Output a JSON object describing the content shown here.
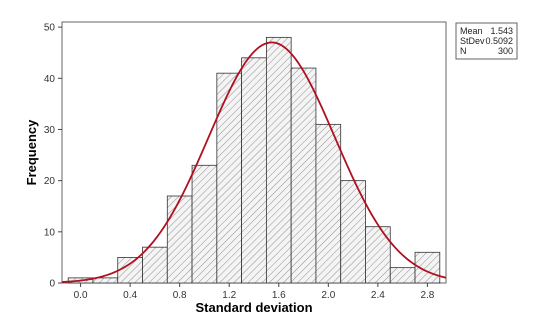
{
  "colors": {
    "bar_fill": "#f4f4f4",
    "bar_stroke": "#333333",
    "hatch": "#777777",
    "curve": "#b01020",
    "background": "#ffffff"
  },
  "chart_data": {
    "type": "bar",
    "subtype": "histogram-with-normal-fit",
    "xlabel": "Standard deviation",
    "ylabel": "Frequency",
    "xlim": [
      -0.15,
      2.95
    ],
    "ylim": [
      0,
      51
    ],
    "grid": false,
    "bin_width": 0.2,
    "bins": [
      {
        "center": 0.0,
        "count": 1
      },
      {
        "center": 0.2,
        "count": 1
      },
      {
        "center": 0.4,
        "count": 5
      },
      {
        "center": 0.6,
        "count": 7
      },
      {
        "center": 0.8,
        "count": 17
      },
      {
        "center": 1.0,
        "count": 23
      },
      {
        "center": 1.2,
        "count": 41
      },
      {
        "center": 1.4,
        "count": 44
      },
      {
        "center": 1.6,
        "count": 48
      },
      {
        "center": 1.8,
        "count": 42
      },
      {
        "center": 2.0,
        "count": 31
      },
      {
        "center": 2.2,
        "count": 20
      },
      {
        "center": 2.4,
        "count": 11
      },
      {
        "center": 2.6,
        "count": 3
      },
      {
        "center": 2.8,
        "count": 6
      }
    ],
    "x_ticks": [
      {
        "value": 0.0,
        "label": "0.0"
      },
      {
        "value": 0.4,
        "label": "0.4"
      },
      {
        "value": 0.8,
        "label": "0.8"
      },
      {
        "value": 1.2,
        "label": "1.2"
      },
      {
        "value": 1.6,
        "label": "1.6"
      },
      {
        "value": 2.0,
        "label": "2.0"
      },
      {
        "value": 2.4,
        "label": "2.4"
      },
      {
        "value": 2.8,
        "label": "2.8"
      }
    ],
    "y_ticks": [
      {
        "value": 0,
        "label": "0"
      },
      {
        "value": 10,
        "label": "10"
      },
      {
        "value": 20,
        "label": "20"
      },
      {
        "value": 30,
        "label": "30"
      },
      {
        "value": 40,
        "label": "40"
      },
      {
        "value": 50,
        "label": "50"
      }
    ],
    "fit": {
      "type": "normal",
      "mean": 1.543,
      "stdev": 0.5092,
      "n": 300
    },
    "legend_position": "top-right",
    "legend": [
      {
        "label": "Mean",
        "value": "1.543"
      },
      {
        "label": "StDev",
        "value": "0.5092"
      },
      {
        "label": "N",
        "value": "300"
      }
    ]
  }
}
